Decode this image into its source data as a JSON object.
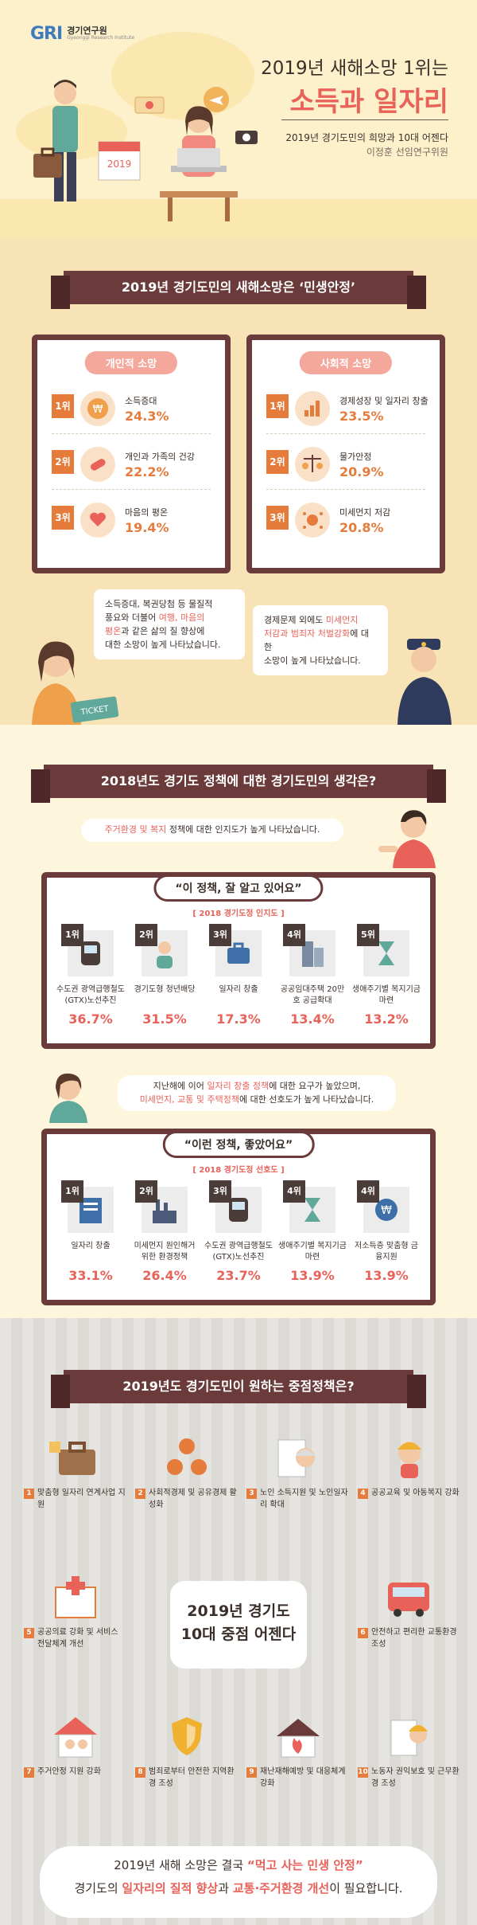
{
  "header": {
    "logo_mark": "GRI",
    "logo_name": "경기연구원",
    "logo_sub": "Gyeonggi Research Institute",
    "title_line1": "2019년 새해소망 1위는",
    "title_line2": "소득과 일자리",
    "subtitle": "2019년 경기도민의 희망과 10대 어젠다",
    "author": "이정훈 선임연구위원",
    "calendar_year": "2019"
  },
  "section_wishes": {
    "title": "2019년 경기도민의 새해소망은 ‘민생안정’",
    "personal": {
      "header": "개인적 소망",
      "items": [
        {
          "rank": "1위",
          "label": "소득증대",
          "value": "24.3%",
          "icon": "won-coin-icon"
        },
        {
          "rank": "2위",
          "label": "개인과 가족의 건강",
          "value": "22.2%",
          "icon": "pill-icon"
        },
        {
          "rank": "3위",
          "label": "마음의 평온",
          "value": "19.4%",
          "icon": "heart-hands-icon"
        }
      ]
    },
    "social": {
      "header": "사회적 소망",
      "items": [
        {
          "rank": "1위",
          "label": "경제성장 및 일자리 창출",
          "value": "23.5%",
          "icon": "chart-icon"
        },
        {
          "rank": "2위",
          "label": "물가안정",
          "value": "20.9%",
          "icon": "scale-icon"
        },
        {
          "rank": "3위",
          "label": "미세먼지 저감",
          "value": "20.8%",
          "icon": "dust-icon"
        }
      ]
    },
    "bubble_left": {
      "p1": "소득증대, 복권당첨 등 물질적",
      "p2": "풍요와 더불어 ",
      "h1": "여행, 마음의",
      "h2": "평온",
      "p3": "과 같은 삶의 질 향상에",
      "p4": "대한 소망이 높게 나타났습니다."
    },
    "bubble_right": {
      "p1": "경제문제 외에도 ",
      "h1": "미세먼지",
      "h2": "저감과 범죄자 처벌강화",
      "p2": "에 대한",
      "p3": "소망이 높게 나타났습니다."
    },
    "ticket_label": "TICKET"
  },
  "section_policy": {
    "title": "2018년도 경기도 정책에 대한 경기도민의 생각은?",
    "notice1": {
      "h": "주거환경 및 복지",
      "t": " 정책에 대한 인지도가 높게 나타났습니다."
    },
    "panel1": {
      "pill": "“이 정책, 잘 알고 있어요”",
      "tag": "[ 2018 경기도정 인지도 ]",
      "tiles": [
        {
          "rank": "1위",
          "name": "수도권 광역급행철도 (GTX)노선추진",
          "value": "36.7%"
        },
        {
          "rank": "2위",
          "name": "경기도형 청년배당",
          "value": "31.5%"
        },
        {
          "rank": "3위",
          "name": "일자리 창출",
          "value": "17.3%"
        },
        {
          "rank": "4위",
          "name": "공공임대주택 20만호 공급확대",
          "value": "13.4%"
        },
        {
          "rank": "5위",
          "name": "생애주기별 복지기금 마련",
          "value": "13.2%"
        }
      ]
    },
    "notice2": {
      "l1a": "지난해에 이어 ",
      "l1h": "일자리 창출 정책",
      "l1b": "에 대한 요구가 높았으며,",
      "l2h": "미세먼지, 교통 및 주택정책",
      "l2b": "에 대한 선호도가 높게 나타났습니다."
    },
    "panel2": {
      "pill": "“이런 정책, 좋았어요”",
      "tag": "[ 2018 경기도정 선호도 ]",
      "tiles": [
        {
          "rank": "1위",
          "name": "일자리 창출",
          "value": "33.1%"
        },
        {
          "rank": "2위",
          "name": "미세먼지 원인해거 위한 환경정책",
          "value": "26.4%"
        },
        {
          "rank": "3위",
          "name": "수도권 광역급행철도 (GTX)노선추진",
          "value": "23.7%"
        },
        {
          "rank": "4위",
          "name": "생애주기별 복지기금 마련",
          "value": "13.9%"
        },
        {
          "rank": "4위",
          "name": "저소득층 맞춤형 금융지원",
          "value": "13.9%"
        }
      ]
    }
  },
  "section_agenda": {
    "title": "2019년도 경기도민이 원하는 중점정책은?",
    "center_line1": "2019년 경기도",
    "center_line2": "10대 중점 어젠다",
    "items": [
      {
        "num": "1",
        "label": "맞춤형 일자리 연계사업 지원"
      },
      {
        "num": "2",
        "label": "사회적경제 및 공유경제 활성화"
      },
      {
        "num": "3",
        "label": "노인 소득지원 및 노인일자리 확대"
      },
      {
        "num": "4",
        "label": "공공교육 및 아동복지 강화"
      },
      {
        "num": "5",
        "label": "공공의료 강화 및 서비스 전달체계 개선"
      },
      {
        "num": "6",
        "label": "안전하고 편리한 교통환경 조성"
      },
      {
        "num": "7",
        "label": "주거안정 지원 강화"
      },
      {
        "num": "8",
        "label": "범죄로부터 안전한 지역환경 조성"
      },
      {
        "num": "9",
        "label": "재난재해예방 및 대응체계 강화"
      },
      {
        "num": "10",
        "label": "노동자 권익보호 및 근무환경 조성"
      }
    ],
    "final": {
      "a": "2019년 새해 소망은 결국 ",
      "b": "“먹고 사는 민생 안정”",
      "c": "경기도의 ",
      "d": "일자리의 질적 향상",
      "e": "과 ",
      "f": "교통·주거환경 개선",
      "g": "이 필요합니다."
    }
  },
  "colors": {
    "accent": "#e8625a",
    "orange": "#e57c3c",
    "brown": "#6b3b3b"
  }
}
